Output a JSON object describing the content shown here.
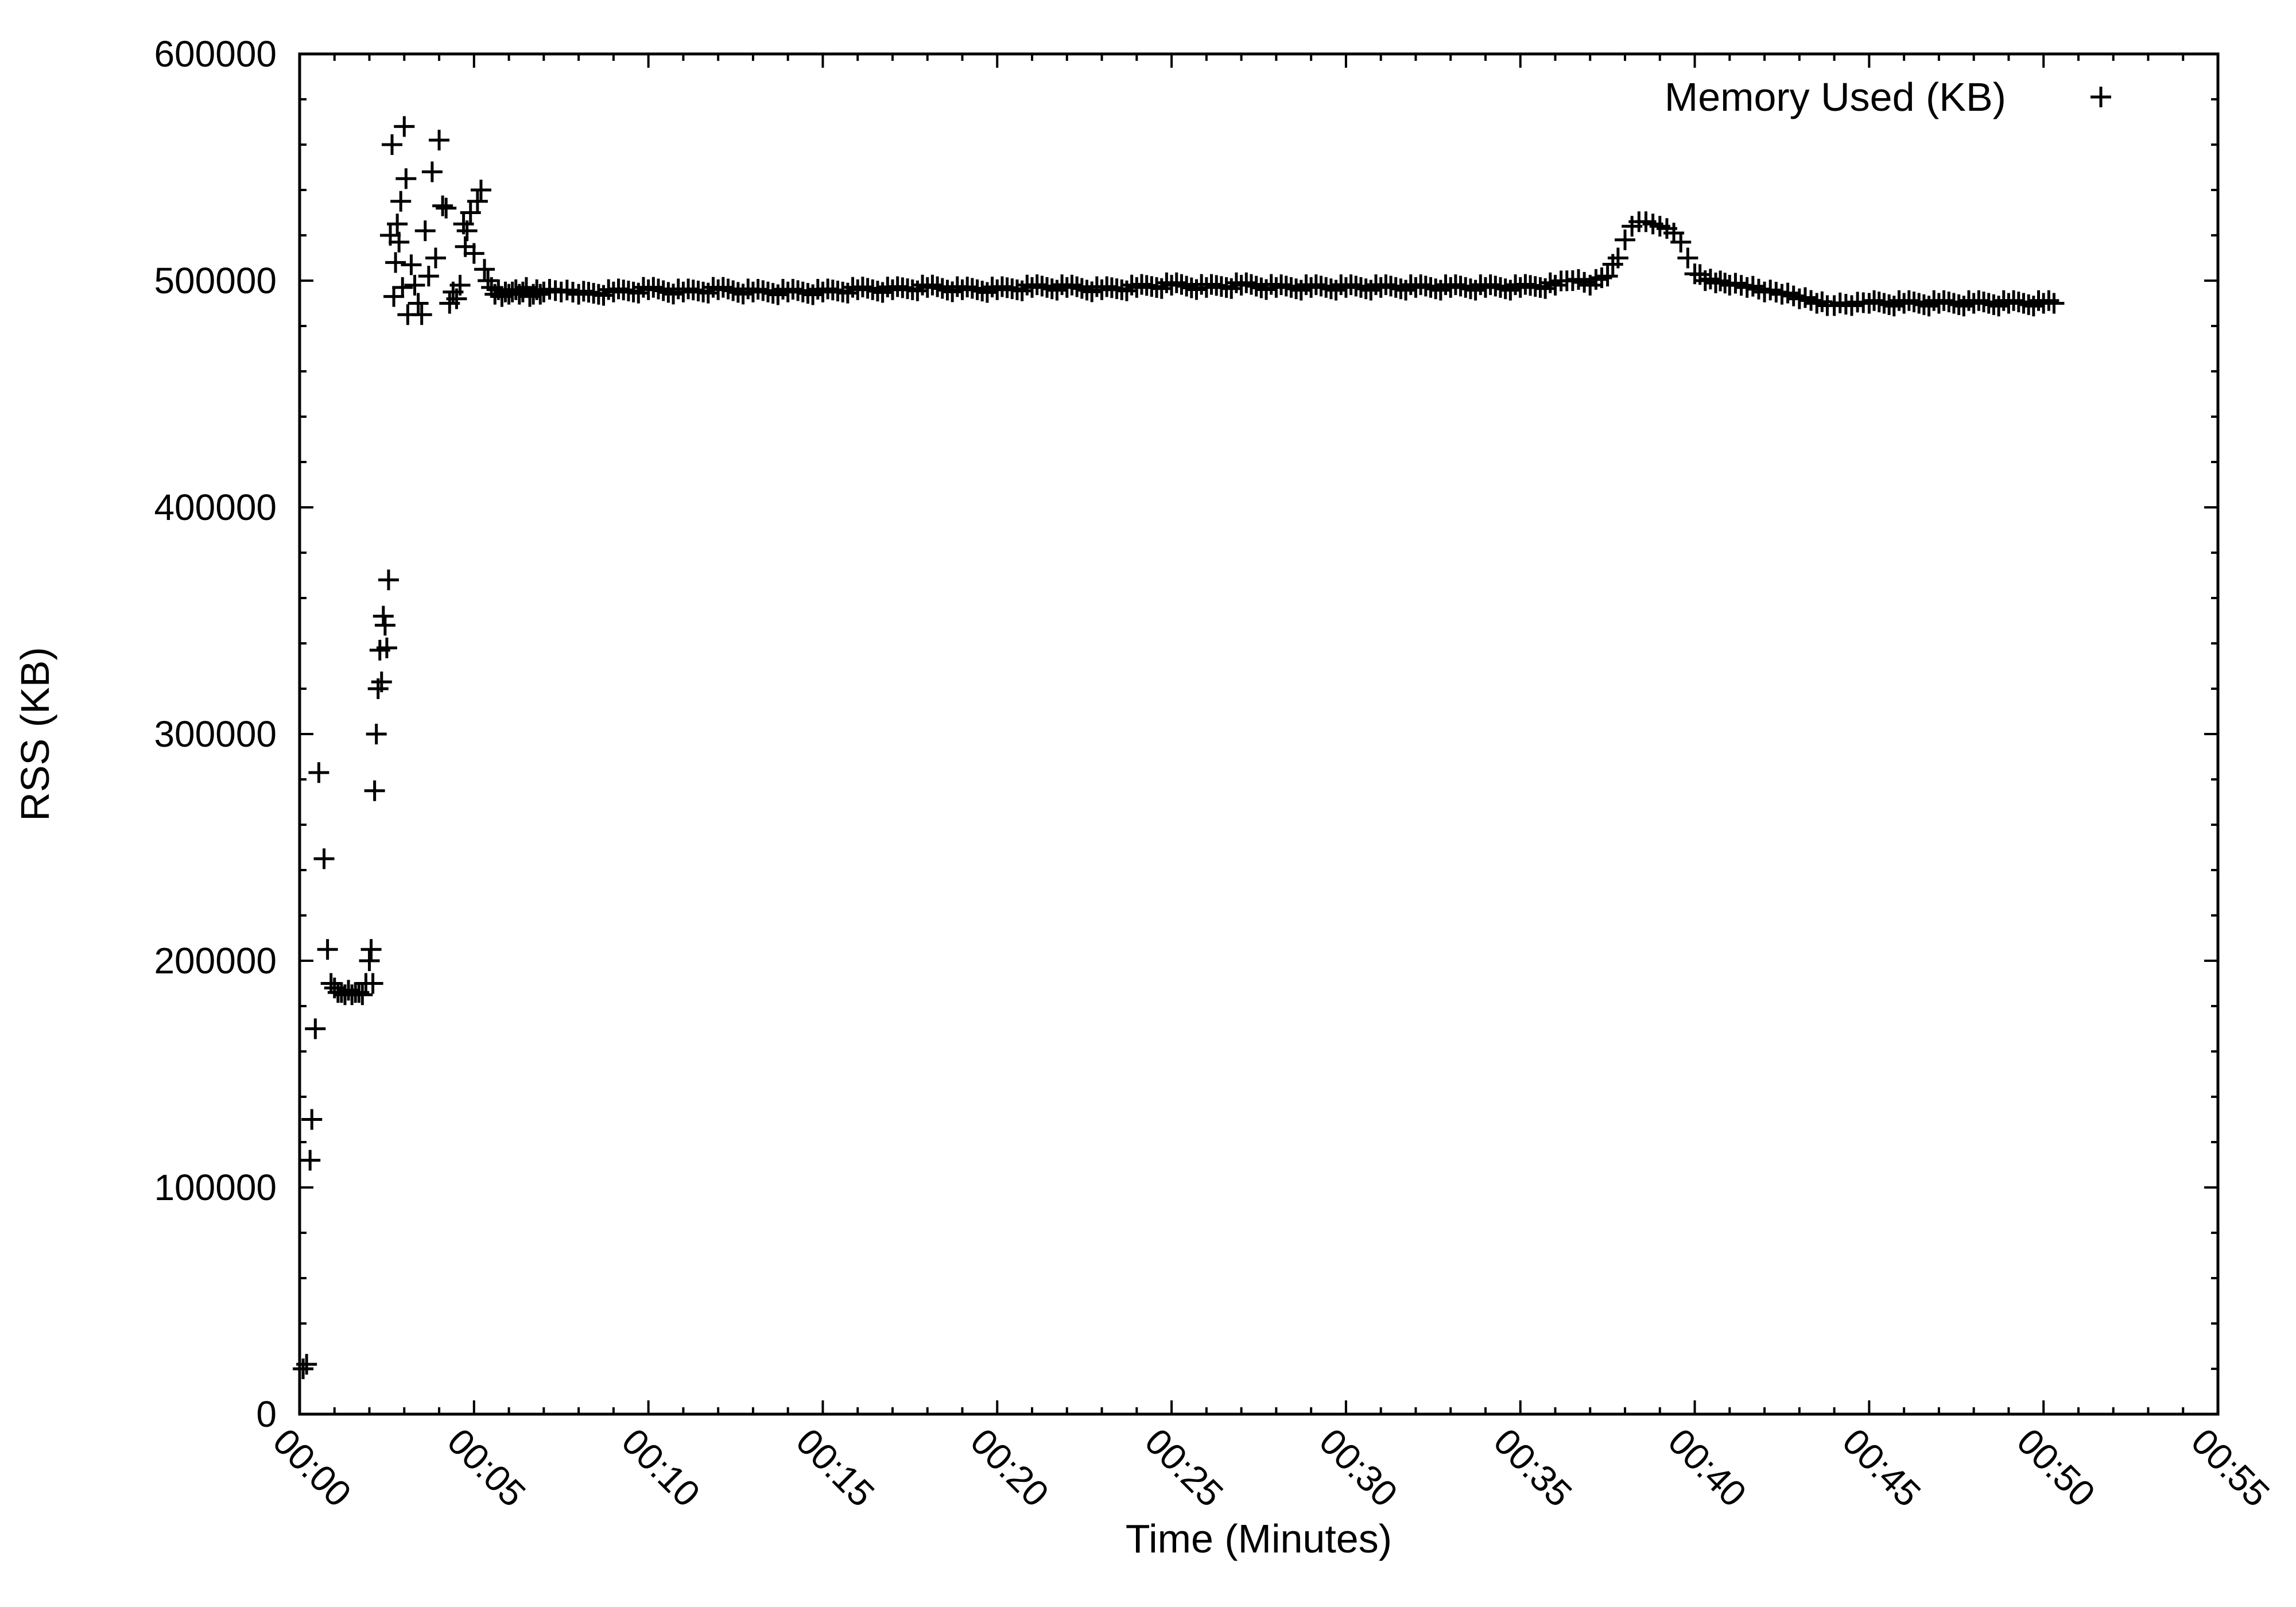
{
  "chart_data": {
    "type": "scatter",
    "title": "",
    "xlabel": "Time (Minutes)",
    "ylabel": "RSS (KB)",
    "xlim": [
      0,
      55
    ],
    "ylim": [
      0,
      600000
    ],
    "x_ticks": [
      "00:00",
      "00:05",
      "00:10",
      "00:15",
      "00:20",
      "00:25",
      "00:30",
      "00:35",
      "00:40",
      "00:45",
      "00:50",
      "00:55"
    ],
    "y_ticks": [
      "0",
      "100000",
      "200000",
      "300000",
      "400000",
      "500000",
      "600000"
    ],
    "grid": false,
    "legend_position": "top-right",
    "marker": "plus",
    "marker_color": "#000000",
    "series": [
      {
        "name": "Memory Used (KB)",
        "x": [
          0.1,
          0.2,
          0.3,
          0.35,
          0.45,
          0.55,
          0.7,
          0.8,
          0.9,
          1.0,
          1.1,
          1.2,
          1.3,
          1.4,
          1.5,
          1.6,
          1.7,
          1.8,
          1.9,
          2.0,
          2.05,
          2.1,
          2.15,
          2.2,
          2.25,
          2.3,
          2.35,
          2.4,
          2.45,
          2.5,
          2.55,
          2.6,
          2.65,
          2.7,
          2.75,
          2.8,
          2.85,
          2.9,
          2.95,
          3.0,
          3.05,
          3.1,
          3.2,
          3.3,
          3.4,
          3.5,
          3.6,
          3.7,
          3.8,
          3.9,
          4.0,
          4.1,
          4.2,
          4.3,
          4.4,
          4.5,
          4.6,
          4.7,
          4.75,
          4.8,
          4.9,
          5.0,
          5.1,
          5.2,
          5.3,
          5.4,
          5.5,
          5.6,
          5.7,
          5.8,
          5.9,
          6.0,
          6.1,
          6.2,
          6.3,
          6.4,
          6.5,
          6.6,
          6.7,
          6.8,
          6.9,
          7.0,
          7.5,
          8,
          9,
          10,
          11,
          12,
          13,
          14,
          15,
          16,
          17,
          18,
          19,
          20,
          21,
          22,
          23,
          24,
          25,
          26,
          27,
          28,
          29,
          30,
          31,
          32,
          33,
          34,
          35,
          36,
          36.5,
          37,
          37.5,
          37.8,
          38.0,
          38.2,
          38.4,
          38.6,
          38.8,
          39.0,
          39.2,
          39.4,
          39.6,
          39.8,
          40.0,
          40.3,
          40.6,
          41.0,
          41.5,
          42,
          42.5,
          43,
          43.5,
          43.8,
          44,
          44.5,
          45,
          46,
          47,
          48,
          49,
          50,
          50.3
        ],
        "values": [
          20000,
          22000,
          112000,
          130000,
          170000,
          283000,
          245000,
          205000,
          190000,
          188000,
          186000,
          186000,
          185000,
          187000,
          185000,
          186000,
          186000,
          185000,
          190000,
          200000,
          205000,
          190000,
          275000,
          300000,
          320000,
          337000,
          323000,
          352000,
          348000,
          338000,
          368000,
          520000,
          560000,
          493000,
          508000,
          525000,
          517000,
          535000,
          497000,
          568000,
          545000,
          485000,
          507000,
          498000,
          490000,
          485000,
          522000,
          502000,
          548000,
          510000,
          562000,
          533000,
          532000,
          490000,
          495000,
          492000,
          498000,
          525000,
          515000,
          522000,
          530000,
          512000,
          535000,
          540000,
          505000,
          500000,
          497000,
          494000,
          496000,
          493000,
          495000,
          494000,
          495000,
          496000,
          494000,
          495000,
          497000,
          493000,
          494000,
          496000,
          494000,
          495000,
          495000,
          494000,
          495000,
          496000,
          495000,
          496000,
          495000,
          495000,
          495000,
          496000,
          496000,
          497000,
          496000,
          496000,
          497000,
          497000,
          496000,
          497000,
          498000,
          497000,
          498000,
          497000,
          497000,
          497000,
          497000,
          497000,
          497000,
          497000,
          497000,
          498000,
          500000,
          498000,
          502000,
          510000,
          518000,
          524000,
          526000,
          526000,
          525000,
          524000,
          523000,
          521000,
          517000,
          510000,
          503000,
          500000,
          499000,
          498000,
          497000,
          495000,
          494000,
          492000,
          490000,
          489000,
          489000,
          489000,
          490000,
          490000,
          490000,
          490000,
          490000,
          490000,
          490000
        ]
      }
    ]
  }
}
